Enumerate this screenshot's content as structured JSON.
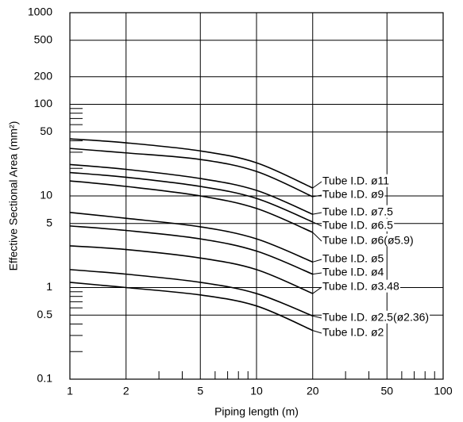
{
  "chart_data": {
    "type": "line",
    "xlabel": "Piping length (m)",
    "ylabel": "Effective Sectional Area (mm²)",
    "log_x": true,
    "log_y": true,
    "grid": true,
    "color": "#000000",
    "xlim": [
      1,
      100
    ],
    "ylim": [
      0.1,
      1000
    ],
    "xticks": [
      1,
      2,
      5,
      10,
      20,
      50,
      100
    ],
    "yticks": [
      0.1,
      0.5,
      1,
      5,
      10,
      50,
      100,
      200,
      500,
      1000
    ],
    "xminor_ticks": [
      3,
      4,
      6,
      7,
      8,
      9,
      30,
      40,
      60,
      70,
      80,
      90
    ],
    "yminor_ticks": [
      0.2,
      0.3,
      0.4,
      0.6,
      0.7,
      0.8,
      0.9,
      20,
      30,
      40,
      60,
      70,
      80,
      90
    ],
    "x": [
      1,
      2,
      5,
      10,
      20
    ],
    "series": [
      {
        "name": "Tube I.D. ø11",
        "color": "#000000",
        "values": [
          42,
          38,
          31,
          23,
          12.2
        ]
      },
      {
        "name": "Tube I.D. ø9",
        "color": "#000000",
        "values": [
          33,
          29.5,
          25,
          18.5,
          9.8
        ]
      },
      {
        "name": "Tube I.D. ø7.5",
        "color": "#000000",
        "values": [
          22,
          19.5,
          15.5,
          11.5,
          6.3
        ]
      },
      {
        "name": "Tube I.D. ø6.5",
        "color": "#000000",
        "values": [
          18,
          16,
          12.7,
          9.4,
          5.2
        ]
      },
      {
        "name": "Tube I.D. ø6(ø5.9)",
        "color": "#000000",
        "values": [
          14.6,
          12.7,
          10,
          7.3,
          4.0
        ]
      },
      {
        "name": "Tube I.D. ø5",
        "color": "#000000",
        "values": [
          6.6,
          5.7,
          4.6,
          3.4,
          1.9
        ]
      },
      {
        "name": "Tube I.D. ø4",
        "color": "#000000",
        "values": [
          4.7,
          4.2,
          3.4,
          2.5,
          1.4
        ]
      },
      {
        "name": "Tube I.D. ø3.48",
        "color": "#000000",
        "values": [
          2.85,
          2.6,
          2.1,
          1.57,
          0.86
        ]
      },
      {
        "name": "Tube I.D. ø2.5(ø2.36)",
        "color": "#000000",
        "values": [
          1.57,
          1.4,
          1.14,
          0.86,
          0.49
        ]
      },
      {
        "name": "Tube I.D. ø2",
        "color": "#000000",
        "values": [
          1.14,
          1.0,
          0.83,
          0.63,
          0.34
        ]
      }
    ]
  }
}
